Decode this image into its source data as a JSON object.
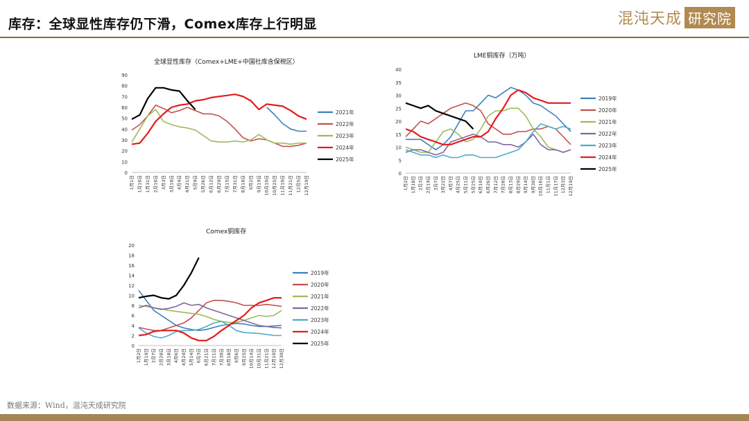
{
  "header": {
    "title": "库存：全球显性库存仍下滑，Comex库存上行明显",
    "logo_text": "混沌天成",
    "logo_box": "研究院",
    "accent": "#8a6a3a"
  },
  "footer": {
    "source": "数据来源：Wind，混沌天成研究院"
  },
  "chart_data": [
    {
      "type": "line",
      "title": "全球显性库存（Comex+LME+中国社库含保税区）",
      "ylim": [
        0,
        90
      ],
      "yticks": [
        0,
        10,
        20,
        30,
        40,
        50,
        60,
        70,
        80,
        90
      ],
      "x": [
        "1月1日",
        "1月16日",
        "1月31日",
        "2月16日",
        "3月3日",
        "3月18日",
        "4月4日",
        "4月21日",
        "5月9日",
        "5月26日",
        "6月12日",
        "6月29日",
        "7月15日",
        "7月31日",
        "8月18日",
        "9月2日",
        "9月19日",
        "10月10日",
        "10月25日",
        "11月10日",
        "11月21日",
        "12月5日",
        "12月19日"
      ],
      "series": [
        {
          "name": "2021年",
          "color": "#3d7fb8",
          "values": [
            null,
            null,
            null,
            null,
            null,
            null,
            null,
            null,
            null,
            null,
            null,
            null,
            null,
            null,
            null,
            null,
            null,
            60,
            53,
            45,
            40,
            38,
            38
          ]
        },
        {
          "name": "2022年",
          "color": "#c0504d",
          "values": [
            39,
            44,
            52,
            62,
            59,
            55,
            57,
            60,
            57,
            54,
            54,
            52,
            47,
            40,
            32,
            29,
            31,
            30,
            27,
            24,
            24,
            25,
            27
          ]
        },
        {
          "name": "2023年",
          "color": "#9bbb59",
          "values": [
            28,
            40,
            52,
            58,
            47,
            44,
            42,
            41,
            39,
            34,
            29,
            28,
            28,
            29,
            28,
            30,
            35,
            30,
            27,
            27,
            26,
            27,
            27
          ]
        },
        {
          "name": "2024年",
          "color": "#e31a1c",
          "values": [
            26,
            27,
            36,
            47,
            54,
            60,
            62,
            63,
            66,
            67,
            69,
            70,
            71,
            72,
            70,
            66,
            58,
            63,
            62,
            61,
            57,
            52,
            49
          ]
        },
        {
          "name": "2025年",
          "color": "#000000",
          "values": [
            49,
            53,
            68,
            78,
            78,
            76,
            75,
            66,
            58,
            null,
            null,
            null,
            null,
            null,
            null,
            null,
            null,
            null,
            null,
            null,
            null,
            null,
            null
          ]
        }
      ]
    },
    {
      "type": "line",
      "title": "LME铜库存（万吨）",
      "ylim": [
        0,
        40
      ],
      "yticks": [
        0,
        5,
        10,
        15,
        20,
        25,
        30,
        35,
        40
      ],
      "x": [
        "1月2日",
        "1月18日",
        "2月3日",
        "2月19日",
        "3月7日",
        "3月22日",
        "4月7日",
        "4月25日",
        "5月11日",
        "5月25日",
        "6月10日",
        "6月26日",
        "7月12日",
        "7月28日",
        "8月13日",
        "8月29日",
        "9月14日",
        "9月30日",
        "10月16日",
        "11月1日",
        "11月17日",
        "12月3日",
        "12月19日"
      ],
      "series": [
        {
          "name": "2019年",
          "color": "#3d7fb8",
          "values": [
            13,
            13,
            13,
            11,
            9,
            11,
            14,
            19,
            24,
            24,
            27,
            30,
            29,
            31,
            33,
            32,
            30,
            27,
            26,
            24,
            22,
            19,
            16
          ]
        },
        {
          "name": "2020年",
          "color": "#c0504d",
          "values": [
            14,
            17,
            20,
            19,
            21,
            23,
            25,
            26,
            27,
            26,
            24,
            19,
            17,
            15,
            15,
            16,
            16,
            17,
            17,
            18,
            17,
            14,
            11
          ]
        },
        {
          "name": "2021年",
          "color": "#9bbb59",
          "values": [
            10,
            9,
            8,
            8,
            12,
            16,
            17,
            15,
            12,
            13,
            17,
            22,
            24,
            24,
            25,
            25,
            22,
            17,
            14,
            10,
            9,
            8,
            9
          ]
        },
        {
          "name": "2022年",
          "color": "#8064a2",
          "values": [
            8,
            9,
            9,
            8,
            7,
            8,
            12,
            13,
            14,
            15,
            14,
            12,
            12,
            11,
            11,
            10,
            12,
            15,
            11,
            9,
            9,
            8,
            9
          ]
        },
        {
          "name": "2023年",
          "color": "#4bacc6",
          "values": [
            9,
            8,
            7,
            7,
            6,
            7,
            6,
            6,
            7,
            7,
            6,
            6,
            6,
            7,
            8,
            9,
            12,
            16,
            19,
            18,
            17,
            18,
            17
          ]
        },
        {
          "name": "2024年",
          "color": "#e31a1c",
          "values": [
            17,
            16,
            14,
            13,
            12,
            11,
            11,
            12,
            13,
            14,
            14,
            16,
            21,
            25,
            30,
            32,
            31,
            29,
            28,
            27,
            27,
            27,
            27
          ]
        },
        {
          "name": "2025年",
          "color": "#000000",
          "values": [
            27,
            26,
            25,
            26,
            24,
            23,
            22,
            21,
            20,
            17,
            null,
            null,
            null,
            null,
            null,
            null,
            null,
            null,
            null,
            null,
            null,
            null,
            null
          ]
        }
      ]
    },
    {
      "type": "line",
      "title": "Comex铜库存",
      "ylim": [
        0,
        20
      ],
      "yticks": [
        0,
        2,
        4,
        6,
        8,
        10,
        12,
        14,
        16,
        18,
        20
      ],
      "x": [
        "1月2日",
        "1月19日",
        "2月7日",
        "2月28日",
        "3月18日",
        "4月6日",
        "4月24日",
        "5月14日",
        "6月3日",
        "6月21日",
        "7月11日",
        "7月30日",
        "8月18日",
        "9月6日",
        "9月25日",
        "10月14日",
        "10月31日",
        "11月21日",
        "12月10日",
        "12月30日"
      ],
      "series": [
        {
          "name": "2019年",
          "color": "#3d7fb8",
          "values": [
            11,
            9,
            7,
            6,
            5,
            4,
            3.5,
            3.2,
            3,
            3.2,
            3.6,
            4.0,
            4.2,
            4.4,
            4.3,
            4.0,
            3.8,
            3.8,
            3.9,
            4.0
          ]
        },
        {
          "name": "2020年",
          "color": "#c0504d",
          "values": [
            3.6,
            3.3,
            3.0,
            3.0,
            3.5,
            4.0,
            4.5,
            5.5,
            7.0,
            8.5,
            9.0,
            9.0,
            8.8,
            8.5,
            8.0,
            8.0,
            8.0,
            8.2,
            8.0,
            7.8
          ]
        },
        {
          "name": "2021年",
          "color": "#9bbb59",
          "values": [
            8,
            7.8,
            7.5,
            7.3,
            7.0,
            6.8,
            6.6,
            6.4,
            6.2,
            5.8,
            5.2,
            4.8,
            4.6,
            4.6,
            5.0,
            5.5,
            6.0,
            5.8,
            6.0,
            7.0
          ]
        },
        {
          "name": "2022年",
          "color": "#8064a2",
          "values": [
            7.5,
            8.0,
            7.5,
            7.2,
            7.4,
            7.8,
            8.5,
            8.0,
            8.2,
            7.5,
            7.0,
            6.5,
            6.0,
            5.5,
            5.0,
            4.5,
            4.0,
            3.8,
            3.6,
            3.5
          ]
        },
        {
          "name": "2023年",
          "color": "#4bacc6",
          "values": [
            3.5,
            2.5,
            1.8,
            1.5,
            2.0,
            2.8,
            3.0,
            3.0,
            3.2,
            3.8,
            4.5,
            4.8,
            4.0,
            3.0,
            2.6,
            2.5,
            2.4,
            2.2,
            2.0,
            2.0
          ]
        },
        {
          "name": "2024年",
          "color": "#e31a1c",
          "values": [
            2.0,
            2.2,
            2.8,
            3.0,
            3.0,
            3.0,
            2.5,
            1.5,
            1.0,
            1.0,
            1.8,
            3.0,
            4.0,
            5.0,
            6.0,
            7.5,
            8.5,
            9.0,
            9.5,
            9.5
          ]
        },
        {
          "name": "2025年",
          "color": "#000000",
          "values": [
            9.5,
            9.8,
            10.0,
            9.5,
            9.3,
            10.0,
            12.0,
            14.5,
            17.5,
            null,
            null,
            null,
            null,
            null,
            null,
            null,
            null,
            null,
            null,
            null
          ]
        }
      ]
    }
  ]
}
